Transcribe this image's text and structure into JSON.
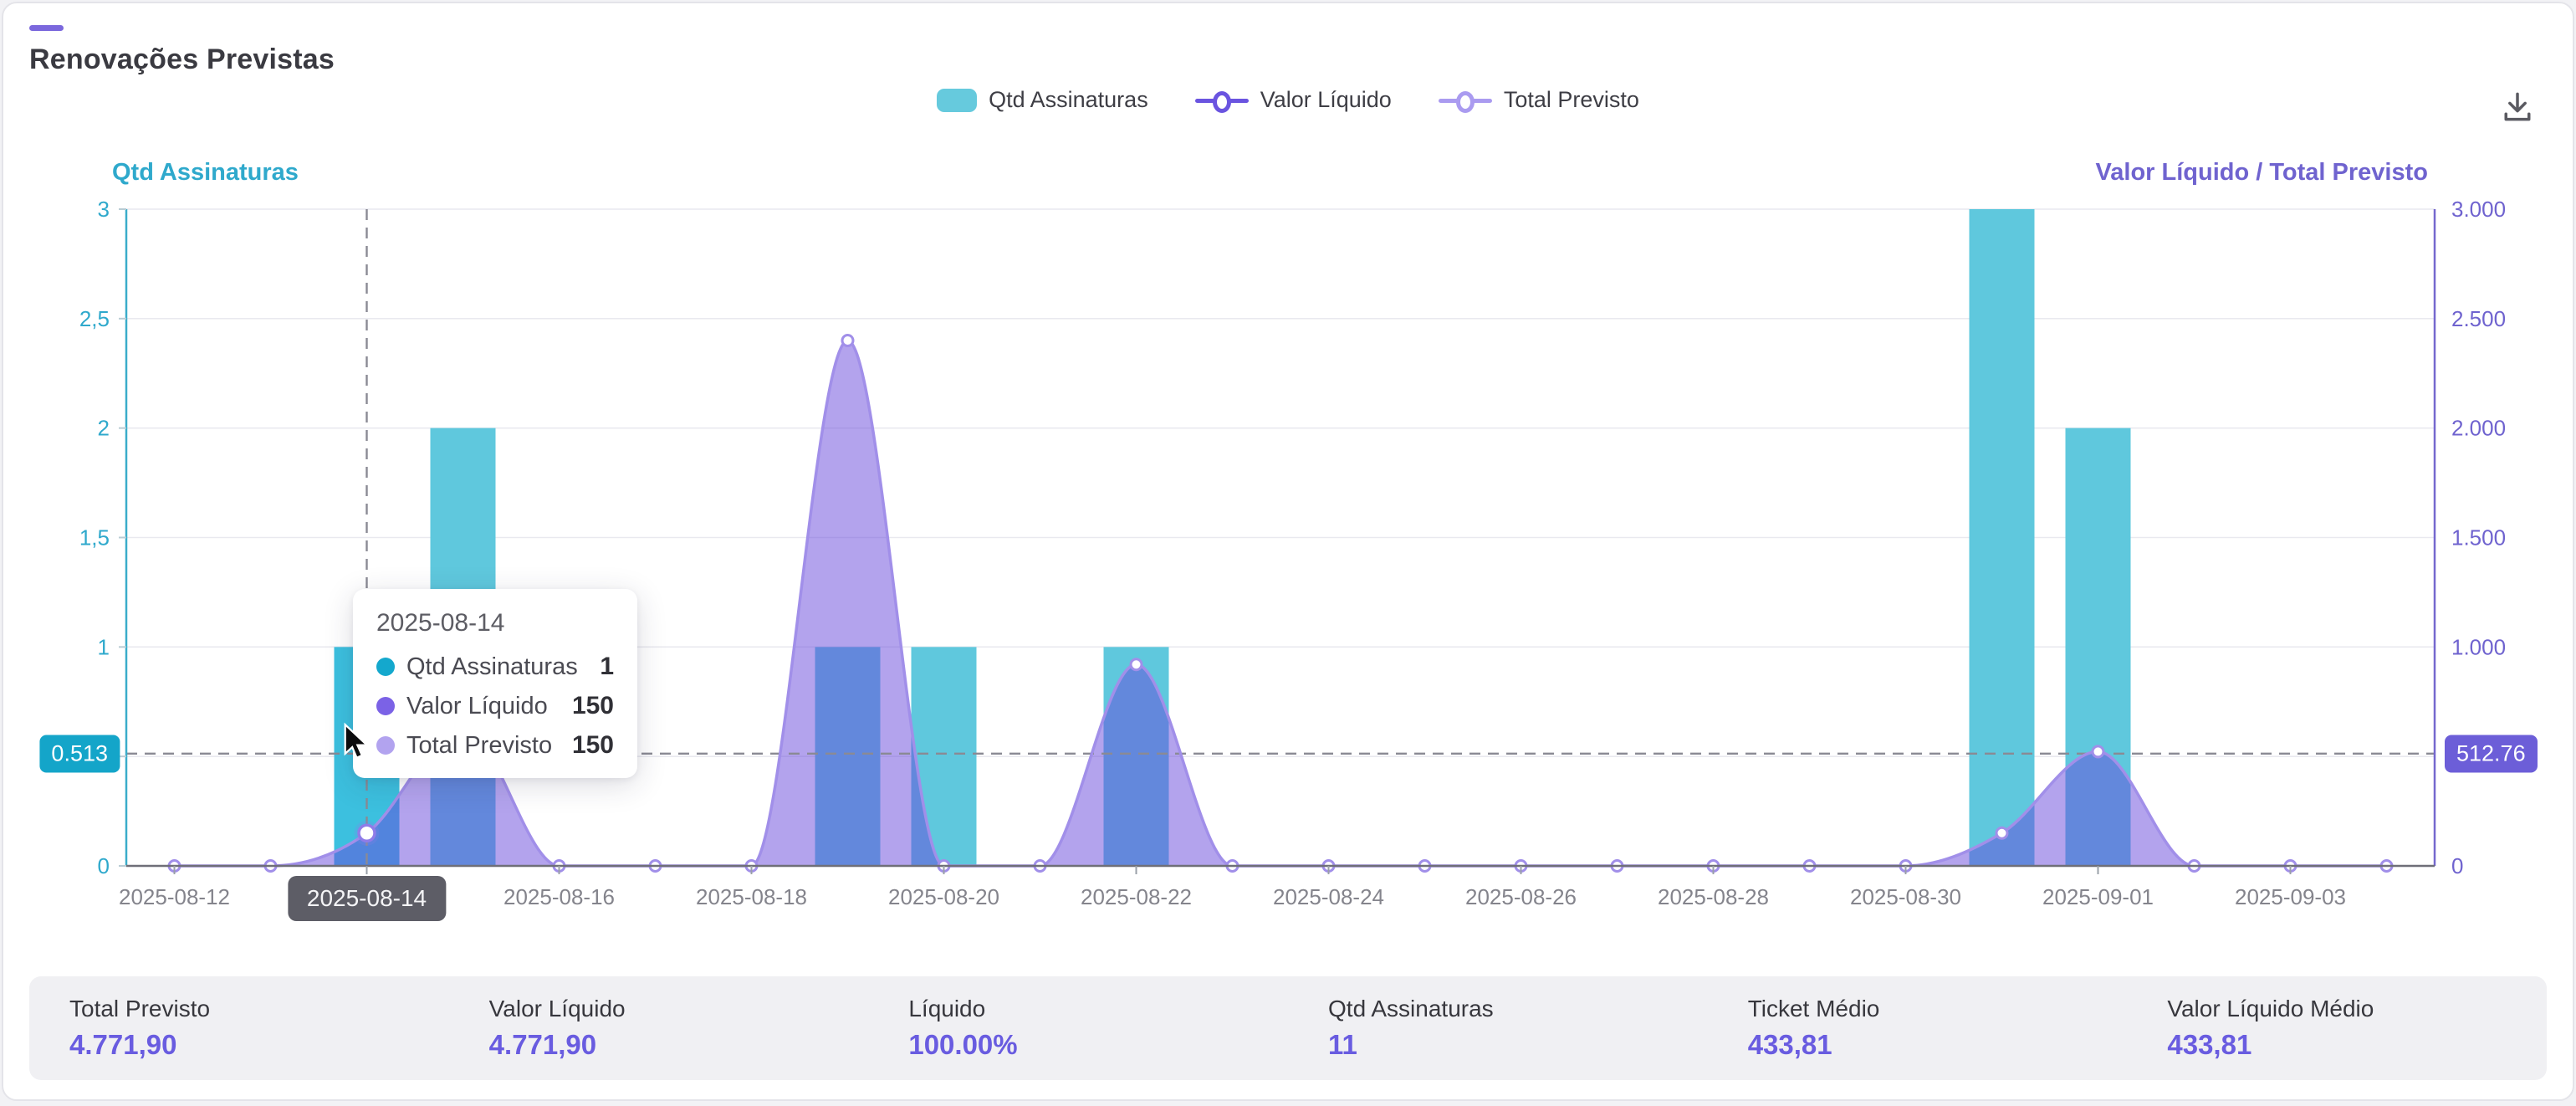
{
  "header": {
    "title": "Renovações Previstas"
  },
  "legend": {
    "items": [
      {
        "label": "Qtd Assinaturas",
        "type": "bar",
        "color": "#66cadd"
      },
      {
        "label": "Valor Líquido",
        "type": "line",
        "color": "#6a54e0"
      },
      {
        "label": "Total Previsto",
        "type": "line",
        "color": "#aa9bf0"
      }
    ]
  },
  "chart_data": {
    "type": "bar+line",
    "x": [
      "2025-08-12",
      "2025-08-13",
      "2025-08-14",
      "2025-08-15",
      "2025-08-16",
      "2025-08-17",
      "2025-08-18",
      "2025-08-19",
      "2025-08-20",
      "2025-08-21",
      "2025-08-22",
      "2025-08-23",
      "2025-08-24",
      "2025-08-25",
      "2025-08-26",
      "2025-08-27",
      "2025-08-28",
      "2025-08-29",
      "2025-08-30",
      "2025-08-31",
      "2025-09-01",
      "2025-09-02",
      "2025-09-03",
      "2025-09-04"
    ],
    "x_label_step": 2,
    "highlighted_x": "2025-08-14",
    "series": [
      {
        "name": "Qtd Assinaturas",
        "type": "bar",
        "y_axis": "left",
        "color": "#5fc8dd",
        "highlight_color": "#3cc0df",
        "values": [
          0,
          0,
          1,
          2,
          0,
          0,
          0,
          1,
          1,
          0,
          1,
          0,
          0,
          0,
          0,
          0,
          0,
          0,
          0,
          3,
          2,
          0,
          0,
          0
        ]
      },
      {
        "name": "Valor Líquido",
        "type": "line",
        "y_axis": "right",
        "color": "#6a54e0",
        "values": [
          0,
          0,
          150,
          630,
          0,
          0,
          0,
          2400,
          0,
          0,
          920,
          0,
          0,
          0,
          0,
          0,
          0,
          0,
          0,
          150,
          521.9,
          0,
          0,
          0
        ]
      },
      {
        "name": "Total Previsto",
        "type": "line",
        "y_axis": "right",
        "color": "#aa9bf0",
        "area_fill": "rgba(103,71,219,0.5)",
        "values": [
          0,
          0,
          150,
          630,
          0,
          0,
          0,
          2400,
          0,
          0,
          920,
          0,
          0,
          0,
          0,
          0,
          0,
          0,
          0,
          150,
          521.9,
          0,
          0,
          0
        ]
      }
    ],
    "y_left": {
      "title": "Qtd Assinaturas",
      "color": "#2fa9cc",
      "max": 3,
      "ticks": [
        {
          "v": 0,
          "label": "0"
        },
        {
          "v": 0.5,
          "label": "0,5"
        },
        {
          "v": 1,
          "label": "1"
        },
        {
          "v": 1.5,
          "label": "1,5"
        },
        {
          "v": 2,
          "label": "2"
        },
        {
          "v": 2.5,
          "label": "2,5"
        },
        {
          "v": 3,
          "label": "3"
        }
      ]
    },
    "y_right": {
      "title": "Valor Líquido / Total Previsto",
      "color": "#6f63cf",
      "max": 3000,
      "ticks": [
        {
          "v": 0,
          "label": "0"
        },
        {
          "v": 500,
          "label": "500"
        },
        {
          "v": 1000,
          "label": "1.000"
        },
        {
          "v": 1500,
          "label": "1.500"
        },
        {
          "v": 2000,
          "label": "2.000"
        },
        {
          "v": 2500,
          "label": "2.500"
        },
        {
          "v": 3000,
          "label": "3.000"
        }
      ]
    },
    "grid": true
  },
  "crosshair": {
    "x_label": "2025-08-14",
    "y_left_label": "0.513",
    "y_right_label": "512.76",
    "y_left_value": 0.513
  },
  "tooltip": {
    "title": "2025-08-14",
    "rows": [
      {
        "label": "Qtd Assinaturas",
        "value": "1",
        "color": "#14a8cd"
      },
      {
        "label": "Valor Líquido",
        "value": "150",
        "color": "#7b62e6"
      },
      {
        "label": "Total Previsto",
        "value": "150",
        "color": "#b2a3ef"
      }
    ]
  },
  "stats": [
    {
      "label": "Total Previsto",
      "value": "4.771,90"
    },
    {
      "label": "Valor Líquido",
      "value": "4.771,90"
    },
    {
      "label": "Líquido",
      "value": "100.00%"
    },
    {
      "label": "Qtd Assinaturas",
      "value": "11"
    },
    {
      "label": "Ticket Médio",
      "value": "433,81"
    },
    {
      "label": "Valor Líquido Médio",
      "value": "433,81"
    }
  ]
}
